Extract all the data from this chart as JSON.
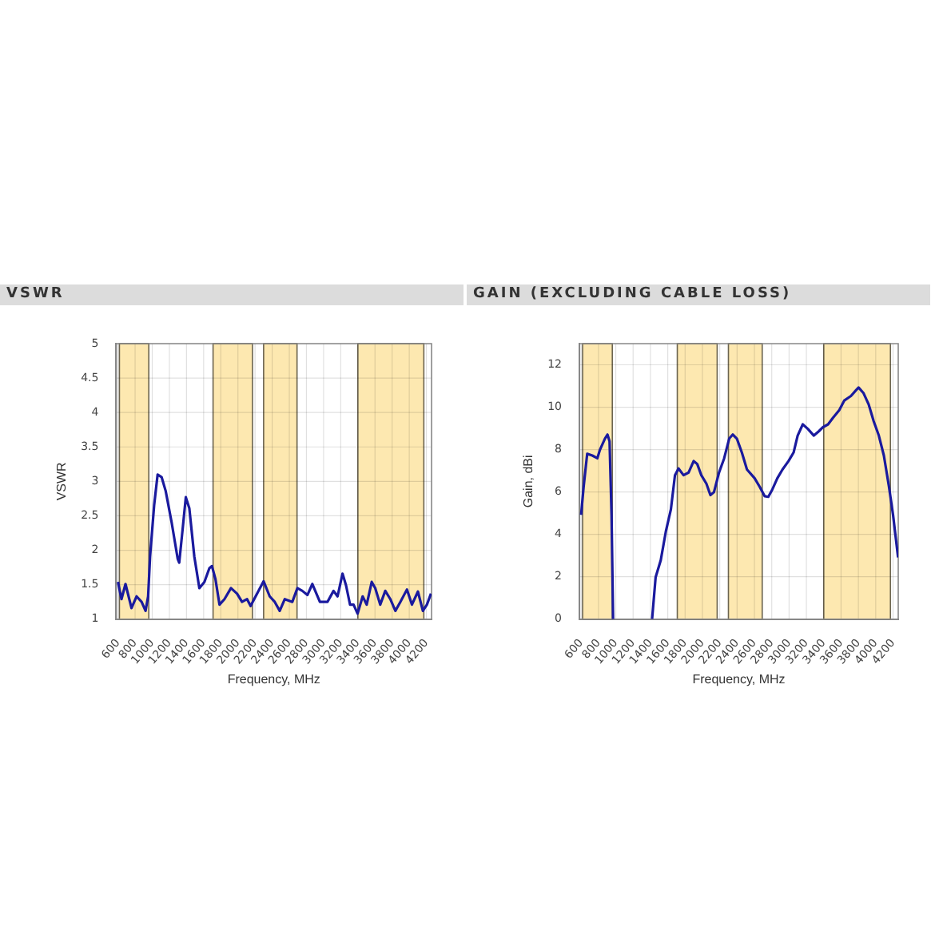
{
  "chart_data": [
    {
      "type": "line",
      "title": "VSWR",
      "xlabel": "Frequency, MHz",
      "ylabel": "VSWR",
      "x": [
        600,
        641,
        688,
        758,
        817,
        876,
        922,
        952,
        975,
        1022,
        1063,
        1110,
        1157,
        1227,
        1298,
        1315,
        1356,
        1392,
        1433,
        1491,
        1550,
        1609,
        1667,
        1697,
        1738,
        1785,
        1843,
        1919,
        1990,
        2048,
        2107,
        2148,
        2224,
        2300,
        2371,
        2430,
        2488,
        2547,
        2635,
        2694,
        2752,
        2811,
        2869,
        2957,
        3045,
        3116,
        3163,
        3221,
        3262,
        3309,
        3350,
        3397,
        3456,
        3503,
        3562,
        3603,
        3661,
        3720,
        3779,
        3838,
        3896,
        3973,
        4031,
        4101,
        4159,
        4206,
        4253
      ],
      "series": [
        {
          "color": "#1a1a9e",
          "values": [
            1.54,
            1.29,
            1.51,
            1.16,
            1.33,
            1.25,
            1.12,
            1.33,
            1.91,
            2.65,
            3.1,
            3.06,
            2.86,
            2.4,
            1.87,
            1.82,
            2.32,
            2.77,
            2.61,
            1.91,
            1.45,
            1.54,
            1.74,
            1.77,
            1.58,
            1.21,
            1.29,
            1.45,
            1.37,
            1.25,
            1.29,
            1.19,
            1.37,
            1.55,
            1.33,
            1.25,
            1.12,
            1.29,
            1.25,
            1.45,
            1.41,
            1.35,
            1.51,
            1.25,
            1.25,
            1.41,
            1.33,
            1.66,
            1.49,
            1.21,
            1.21,
            1.08,
            1.33,
            1.21,
            1.54,
            1.45,
            1.21,
            1.41,
            1.29,
            1.12,
            1.25,
            1.43,
            1.21,
            1.4,
            1.12,
            1.21,
            1.37
          ]
        }
      ],
      "xlim": [
        580,
        4260
      ],
      "xticks": [
        600,
        800,
        1000,
        1200,
        1400,
        1600,
        1800,
        2000,
        2200,
        2400,
        2600,
        2800,
        3000,
        3200,
        3400,
        3600,
        3800,
        4000,
        4200
      ],
      "ylim": [
        1,
        5
      ],
      "yticks": [
        1,
        1.5,
        2,
        2.5,
        3,
        3.5,
        4,
        4.5,
        5
      ],
      "grid": true,
      "bands": [
        {
          "axis": "x",
          "from": 617,
          "to": 960,
          "color": "#fde8b0"
        },
        {
          "axis": "x",
          "from": 1710,
          "to": 2170,
          "color": "#fde8b0"
        },
        {
          "axis": "x",
          "from": 2300,
          "to": 2690,
          "color": "#fde8b0"
        },
        {
          "axis": "x",
          "from": 3400,
          "to": 4170,
          "color": "#fde8b0"
        }
      ]
    },
    {
      "type": "line",
      "title": "GAIN (EXCLUDING CABLE LOSS)",
      "xlabel": "Frequency, MHz",
      "ylabel": "Gain, dBi",
      "x": [
        600,
        629,
        670,
        729,
        787,
        817,
        875,
        904,
        928,
        951,
        969,
        1200,
        1419,
        1460,
        1519,
        1577,
        1636,
        1683,
        1724,
        1782,
        1841,
        1899,
        1940,
        1987,
        2046,
        2092,
        2133,
        2192,
        2251,
        2309,
        2350,
        2397,
        2455,
        2514,
        2602,
        2660,
        2719,
        2760,
        2807,
        2865,
        2924,
        2994,
        3052,
        3099,
        3158,
        3216,
        3286,
        3345,
        3392,
        3450,
        3509,
        3579,
        3638,
        3714,
        3772,
        3802,
        3860,
        3919,
        3977,
        4036,
        4094,
        4153,
        4200,
        4258
      ],
      "series": [
        {
          "color": "#1a1a9e",
          "values": [
            4.92,
            6.25,
            7.8,
            7.72,
            7.59,
            7.99,
            8.52,
            8.71,
            8.39,
            4.92,
            0,
            null,
            0,
            1.98,
            2.78,
            4.12,
            5.18,
            6.79,
            7.11,
            6.79,
            6.92,
            7.46,
            7.32,
            6.79,
            6.39,
            5.85,
            5.99,
            6.92,
            7.59,
            8.52,
            8.71,
            8.52,
            7.86,
            7.06,
            6.65,
            6.25,
            5.8,
            5.77,
            6.12,
            6.65,
            7.06,
            7.46,
            7.86,
            8.66,
            9.19,
            8.98,
            8.66,
            8.87,
            9.06,
            9.19,
            9.51,
            9.86,
            10.32,
            10.53,
            10.8,
            10.93,
            10.66,
            10.13,
            9.33,
            8.66,
            7.72,
            6.25,
            4.92,
            2.91
          ]
        }
      ],
      "xlim": [
        580,
        4260
      ],
      "xticks": [
        600,
        800,
        1000,
        1200,
        1400,
        1600,
        1800,
        2000,
        2200,
        2400,
        2600,
        2800,
        3000,
        3200,
        3400,
        3600,
        3800,
        4000,
        4200
      ],
      "ylim": [
        0,
        13
      ],
      "yticks": [
        0,
        2,
        4,
        6,
        8,
        10,
        12
      ],
      "grid": true,
      "bands": [
        {
          "axis": "x",
          "from": 617,
          "to": 960,
          "color": "#fde8b0"
        },
        {
          "axis": "x",
          "from": 1710,
          "to": 2170,
          "color": "#fde8b0"
        },
        {
          "axis": "x",
          "from": 2300,
          "to": 2690,
          "color": "#fde8b0"
        },
        {
          "axis": "x",
          "from": 3400,
          "to": 4170,
          "color": "#fde8b0"
        }
      ]
    }
  ]
}
